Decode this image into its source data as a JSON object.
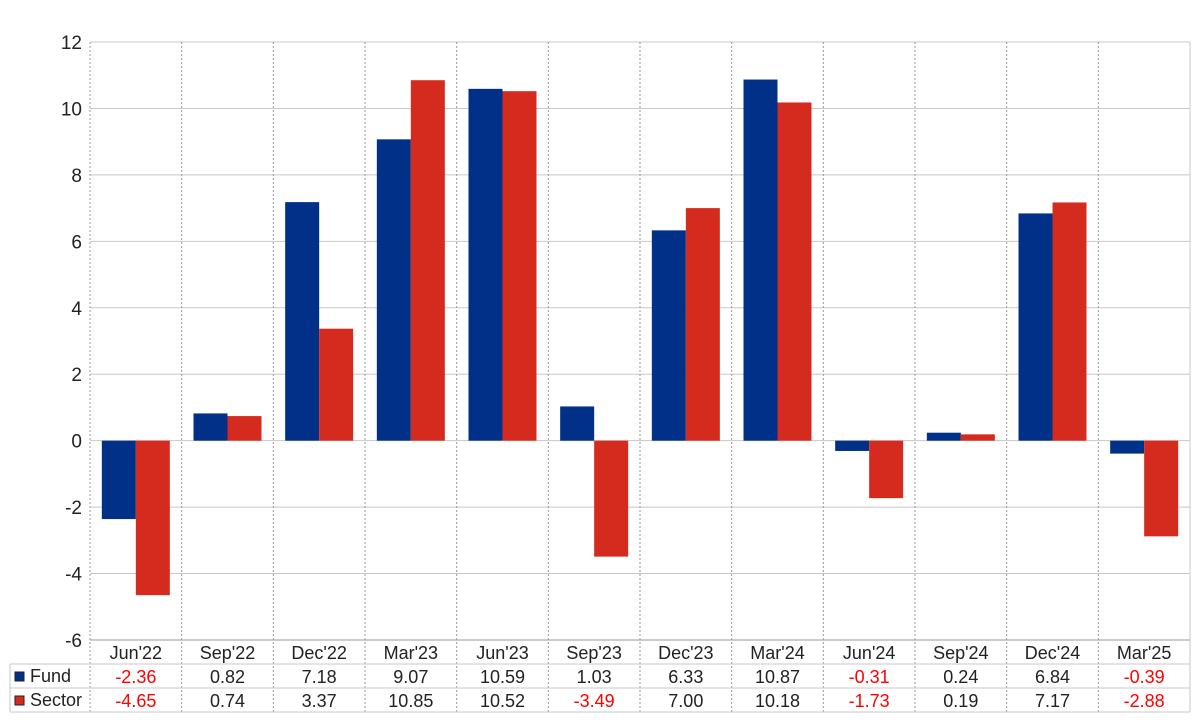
{
  "chart_data": {
    "type": "bar",
    "categories": [
      "Jun'22",
      "Sep'22",
      "Dec'22",
      "Mar'23",
      "Jun'23",
      "Sep'23",
      "Dec'23",
      "Mar'24",
      "Jun'24",
      "Sep'24",
      "Dec'24",
      "Mar'25"
    ],
    "series": [
      {
        "name": "Fund",
        "color": "#003087",
        "values": [
          -2.36,
          0.82,
          7.18,
          9.07,
          10.59,
          1.03,
          6.33,
          10.87,
          -0.31,
          0.24,
          6.84,
          -0.39
        ],
        "labels": [
          "-2.36",
          "0.82",
          "7.18",
          "9.07",
          "10.59",
          "1.03",
          "6.33",
          "10.87",
          "-0.31",
          "0.24",
          "6.84",
          "-0.39"
        ]
      },
      {
        "name": "Sector",
        "color": "#d52b1e",
        "values": [
          -4.65,
          0.74,
          3.37,
          10.85,
          10.52,
          -3.49,
          7.0,
          10.18,
          -1.73,
          0.19,
          7.17,
          -2.88
        ],
        "labels": [
          "-4.65",
          "0.74",
          "3.37",
          "10.85",
          "10.52",
          "-3.49",
          "7.00",
          "10.18",
          "-1.73",
          "0.19",
          "7.17",
          "-2.88"
        ]
      }
    ],
    "ylim": [
      -6,
      12
    ],
    "yticks": [
      "-6",
      "-4",
      "-2",
      "0",
      "2",
      "4",
      "6",
      "8",
      "10",
      "12"
    ],
    "grid": true,
    "legend": "data-table-below",
    "negative_label_color": "#ff0000"
  }
}
